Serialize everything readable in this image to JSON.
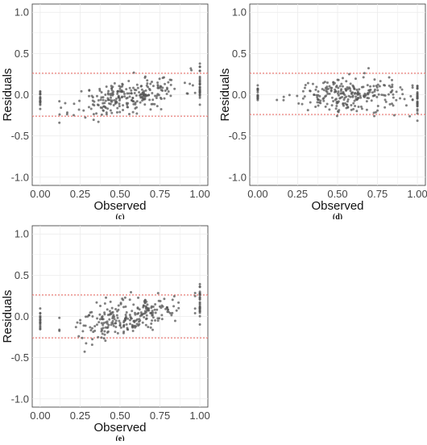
{
  "chart_data": [
    {
      "type": "scatter",
      "panel_label": "(c)",
      "xlabel": "Observed",
      "ylabel": "Residuals",
      "xlim": [
        -0.05,
        1.05
      ],
      "ylim": [
        -1.1,
        1.1
      ],
      "x_ticks": [
        "0.00",
        "0.25",
        "0.50",
        "0.75",
        "1.00"
      ],
      "y_ticks": [
        "-1.0",
        "-0.5",
        "0.0",
        "0.5",
        "1.0"
      ],
      "reference_lines": [
        0.26,
        -0.26
      ],
      "grid": true,
      "trend": "increasing",
      "points_estimated": true,
      "approx_points": 260
    },
    {
      "type": "scatter",
      "panel_label": "(d)",
      "xlabel": "Observed",
      "ylabel": "Residuals",
      "xlim": [
        -0.05,
        1.05
      ],
      "ylim": [
        -1.1,
        1.1
      ],
      "x_ticks": [
        "0.00",
        "0.25",
        "0.50",
        "0.75",
        "1.00"
      ],
      "y_ticks": [
        "-1.0",
        "-0.5",
        "0.0",
        "0.5",
        "1.0"
      ],
      "reference_lines": [
        0.26,
        -0.24
      ],
      "grid": true,
      "trend": "flat",
      "points_estimated": true,
      "approx_points": 260
    },
    {
      "type": "scatter",
      "panel_label": "(e)",
      "xlabel": "Observed",
      "ylabel": "Residuals",
      "xlim": [
        -0.05,
        1.05
      ],
      "ylim": [
        -1.1,
        1.1
      ],
      "x_ticks": [
        "0.00",
        "0.25",
        "0.50",
        "0.75",
        "1.00"
      ],
      "y_ticks": [
        "-1.0",
        "-0.5",
        "0.0",
        "0.5",
        "1.0"
      ],
      "reference_lines": [
        0.26,
        -0.26
      ],
      "grid": true,
      "trend": "increasing",
      "points_estimated": true,
      "approx_points": 260
    }
  ],
  "colors": {
    "point": "#555555",
    "reference_line": "#e8625b",
    "grid": "#ebebeb",
    "axis_text": "#444444",
    "title_text": "#111111"
  }
}
